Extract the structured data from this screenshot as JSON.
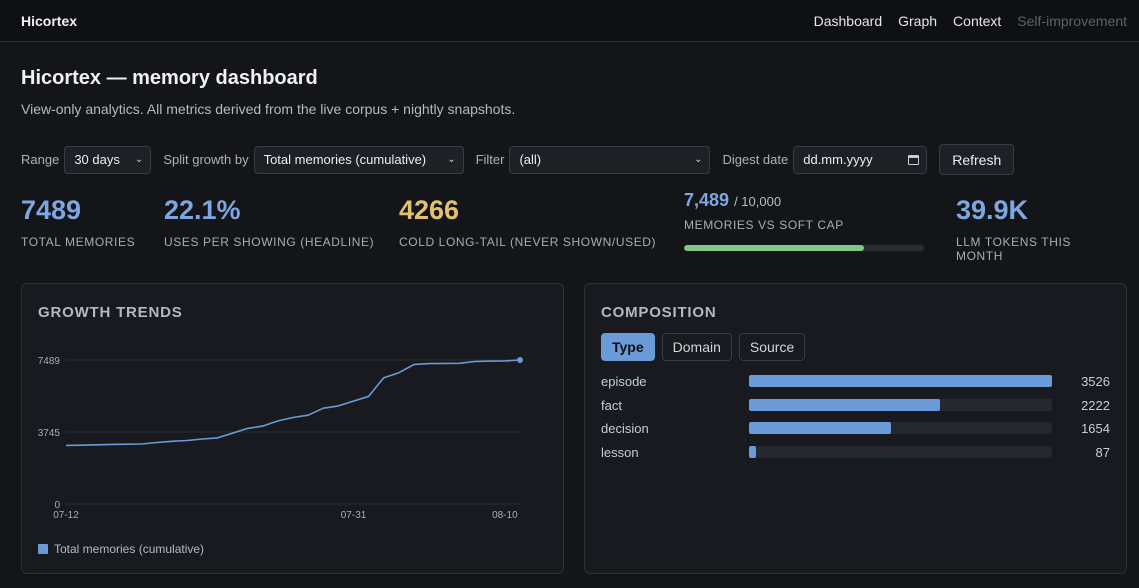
{
  "app": {
    "brand": "Hicortex"
  },
  "nav": [
    {
      "label": "Dashboard",
      "dim": false
    },
    {
      "label": "Graph",
      "dim": false
    },
    {
      "label": "Context",
      "dim": false
    },
    {
      "label": "Self-improvement",
      "dim": true
    }
  ],
  "page": {
    "title": "Hicortex — memory dashboard",
    "subtitle": "View-only analytics. All metrics derived from the live corpus + nightly snapshots."
  },
  "controls": {
    "range_label": "Range",
    "range_value": "30 days",
    "split_label": "Split growth by",
    "split_value": "Total memories (cumulative)",
    "filter_label": "Filter",
    "filter_value": "(all)",
    "digest_label": "Digest date",
    "digest_placeholder": "dd.mm.yyyy",
    "refresh_label": "Refresh"
  },
  "kpis": {
    "total": {
      "value": "7489",
      "label": "Total memories",
      "color": "#7ea7e1"
    },
    "uses": {
      "value": "22.1%",
      "label": "Uses per showing (headline)",
      "color": "#7ea7e1"
    },
    "cold": {
      "value": "4266",
      "label": "Cold long-tail (never shown/used)",
      "color": "#e2c070"
    },
    "cap": {
      "value": "7,489",
      "cap": "/ 10,000",
      "label": "Memories vs soft cap",
      "fraction": 0.7489,
      "color": "#7fc68a"
    },
    "tokens": {
      "value": "39.9K",
      "label": "LLM tokens this month",
      "color": "#7ea7e1"
    }
  },
  "growth": {
    "heading": "Growth trends",
    "legend": "Total memories (cumulative)",
    "chart_data": {
      "type": "line",
      "x_ticks": [
        "07-12",
        "07-31",
        "08-10"
      ],
      "y_ticks": [
        "0",
        "3745",
        "7489"
      ],
      "ylim": [
        0,
        7489
      ],
      "series": [
        {
          "name": "Total memories (cumulative)",
          "color": "#6a9bd8",
          "values": [
            3050,
            3060,
            3080,
            3100,
            3110,
            3120,
            3200,
            3260,
            3300,
            3380,
            3440,
            3680,
            3930,
            4050,
            4320,
            4500,
            4620,
            4980,
            5100,
            5350,
            5600,
            6570,
            6830,
            7260,
            7300,
            7310,
            7315,
            7410,
            7430,
            7440,
            7489
          ]
        }
      ]
    }
  },
  "composition": {
    "heading": "Composition",
    "tabs": [
      {
        "label": "Type",
        "active": true
      },
      {
        "label": "Domain",
        "active": false
      },
      {
        "label": "Source",
        "active": false
      }
    ],
    "max": 3526,
    "rows": [
      {
        "name": "episode",
        "value": 3526
      },
      {
        "name": "fact",
        "value": 2222
      },
      {
        "name": "decision",
        "value": 1654
      },
      {
        "name": "lesson",
        "value": 87
      }
    ]
  }
}
